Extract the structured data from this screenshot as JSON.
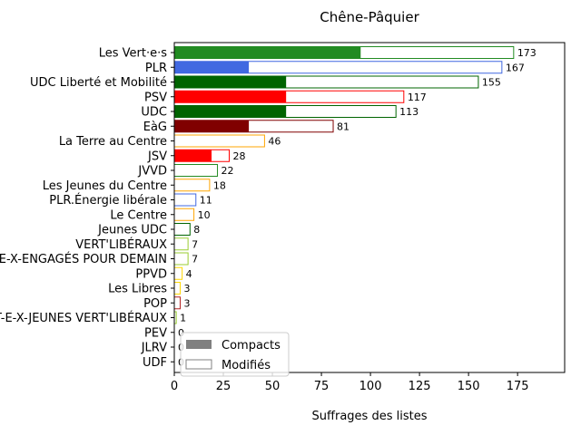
{
  "chart_data": {
    "type": "bar",
    "orientation": "horizontal",
    "stacked_overlay": true,
    "title": "Chêne-Pâquier",
    "xlabel": "Suffrages des listes",
    "ylabel": "",
    "xlim": [
      0,
      199
    ],
    "xticks": [
      0,
      25,
      50,
      75,
      100,
      125,
      150,
      175
    ],
    "categories": [
      "Les Vert·e·s",
      "PLR",
      "UDC Liberté et Mobilité",
      "PSV",
      "UDC",
      "EàG",
      "La Terre au Centre",
      "JSV",
      "JVVD",
      "Les Jeunes du Centre",
      "PLR.Énergie libérale",
      "Le Centre",
      "Jeunes UDC",
      "VERT'LIBÉRAUX",
      "LES VERT-E-X-ENGAGÉS POUR DEMAIN",
      "PPVD",
      "Les Libres",
      "POP",
      "LES VERT-E-X-JEUNES VERT'LIBÉRAUX",
      "PEV",
      "JLRV",
      "UDF"
    ],
    "colors": [
      "#228b22",
      "#4169e1",
      "#006400",
      "#ff0000",
      "#006400",
      "#800000",
      "#ffa500",
      "#ff0000",
      "#228b22",
      "#ffa500",
      "#4169e1",
      "#ffa500",
      "#006400",
      "#9acd32",
      "#9acd32",
      "#ffd700",
      "#ffd700",
      "#b22222",
      "#9acd32",
      "#ffd700",
      "#4169e1",
      "#8b008b"
    ],
    "series": [
      {
        "name": "Compacts",
        "values": [
          95,
          38,
          57,
          57,
          57,
          38,
          0,
          19,
          0,
          0,
          0,
          0,
          0,
          0,
          0,
          0,
          0,
          0,
          0,
          0,
          0,
          0
        ]
      },
      {
        "name": "Modifiés",
        "values": [
          173,
          167,
          155,
          117,
          113,
          81,
          46,
          28,
          22,
          18,
          11,
          10,
          8,
          7,
          7,
          4,
          3,
          3,
          1,
          0,
          0,
          0
        ]
      }
    ],
    "legend": {
      "placement": "lower-left",
      "entries": [
        "Compacts",
        "Modifiés"
      ]
    },
    "grid": false
  }
}
